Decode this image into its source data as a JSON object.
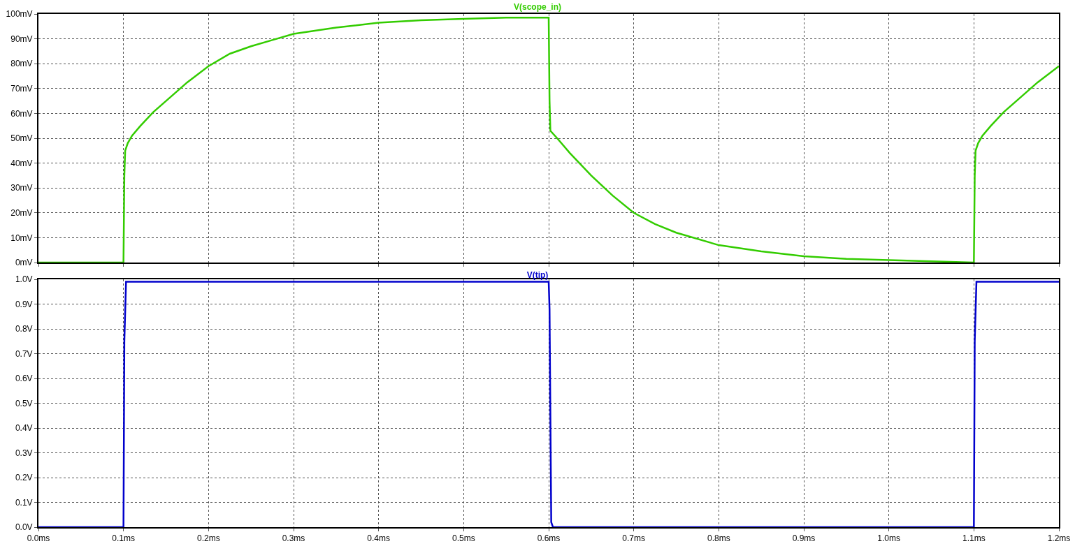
{
  "chart_data": [
    {
      "type": "line",
      "title": "V(scope_in)",
      "xlim": [
        0,
        1.2
      ],
      "xticks": [
        0,
        0.1,
        0.2,
        0.3,
        0.4,
        0.5,
        0.6,
        0.7,
        0.8,
        0.9,
        1.0,
        1.1,
        1.2
      ],
      "ylim": [
        0,
        100
      ],
      "yticks": [
        {
          "value": 0,
          "label": "0mV"
        },
        {
          "value": 10,
          "label": "10mV"
        },
        {
          "value": 20,
          "label": "20mV"
        },
        {
          "value": 30,
          "label": "30mV"
        },
        {
          "value": 40,
          "label": "40mV"
        },
        {
          "value": 50,
          "label": "50mV"
        },
        {
          "value": 60,
          "label": "60mV"
        },
        {
          "value": 70,
          "label": "70mV"
        },
        {
          "value": 80,
          "label": "80mV"
        },
        {
          "value": 90,
          "label": "90mV"
        },
        {
          "value": 100,
          "label": "100mV"
        }
      ],
      "tick_labels": "y",
      "grid": true,
      "line_style": "solid",
      "marker": "none",
      "x": [
        0,
        0.1,
        0.101,
        0.102,
        0.105,
        0.11,
        0.12,
        0.135,
        0.15,
        0.175,
        0.2,
        0.225,
        0.25,
        0.275,
        0.3,
        0.35,
        0.4,
        0.45,
        0.5,
        0.55,
        0.6,
        0.601,
        0.602,
        0.61,
        0.625,
        0.65,
        0.675,
        0.7,
        0.725,
        0.75,
        0.8,
        0.85,
        0.9,
        0.95,
        1.0,
        1.05,
        1.1,
        1.101,
        1.102,
        1.105,
        1.11,
        1.12,
        1.135,
        1.15,
        1.175,
        1.2
      ],
      "series": [
        {
          "color": "#33cc00",
          "values": [
            0,
            0,
            35,
            45,
            48,
            51,
            55,
            60.5,
            65,
            72.5,
            79,
            84,
            87,
            89.5,
            92,
            94.5,
            96.5,
            97.5,
            98,
            98.5,
            98.5,
            65,
            53,
            50,
            44,
            35,
            27,
            20,
            15.5,
            12,
            7,
            4.5,
            2.5,
            1.5,
            1,
            0.5,
            0,
            35,
            45,
            48,
            51,
            55,
            60.5,
            65,
            72.5,
            79
          ]
        }
      ]
    },
    {
      "type": "line",
      "title": "V(tip)",
      "xlim": [
        0,
        1.2
      ],
      "xticks": [
        {
          "value": 0,
          "label": "0.0ms"
        },
        {
          "value": 0.1,
          "label": "0.1ms"
        },
        {
          "value": 0.2,
          "label": "0.2ms"
        },
        {
          "value": 0.3,
          "label": "0.3ms"
        },
        {
          "value": 0.4,
          "label": "0.4ms"
        },
        {
          "value": 0.5,
          "label": "0.5ms"
        },
        {
          "value": 0.6,
          "label": "0.6ms"
        },
        {
          "value": 0.7,
          "label": "0.7ms"
        },
        {
          "value": 0.8,
          "label": "0.8ms"
        },
        {
          "value": 0.9,
          "label": "0.9ms"
        },
        {
          "value": 1.0,
          "label": "1.0ms"
        },
        {
          "value": 1.1,
          "label": "1.1ms"
        },
        {
          "value": 1.2,
          "label": "1.2ms"
        }
      ],
      "ylim": [
        0,
        1.0
      ],
      "yticks": [
        {
          "value": 0,
          "label": "0.0V"
        },
        {
          "value": 0.1,
          "label": "0.1V"
        },
        {
          "value": 0.2,
          "label": "0.2V"
        },
        {
          "value": 0.3,
          "label": "0.3V"
        },
        {
          "value": 0.4,
          "label": "0.4V"
        },
        {
          "value": 0.5,
          "label": "0.5V"
        },
        {
          "value": 0.6,
          "label": "0.6V"
        },
        {
          "value": 0.7,
          "label": "0.7V"
        },
        {
          "value": 0.8,
          "label": "0.8V"
        },
        {
          "value": 0.9,
          "label": "0.9V"
        },
        {
          "value": 1.0,
          "label": "1.0V"
        }
      ],
      "grid": true,
      "line_style": "solid",
      "marker": "none",
      "x": [
        0,
        0.1,
        0.101,
        0.103,
        0.6,
        0.601,
        0.603,
        0.605,
        1.1,
        1.101,
        1.103,
        1.2
      ],
      "series": [
        {
          "color": "#0000cc",
          "values": [
            0,
            0,
            0.75,
            0.99,
            0.99,
            0.88,
            0.02,
            0,
            0,
            0.75,
            0.99,
            0.99
          ]
        }
      ]
    }
  ]
}
